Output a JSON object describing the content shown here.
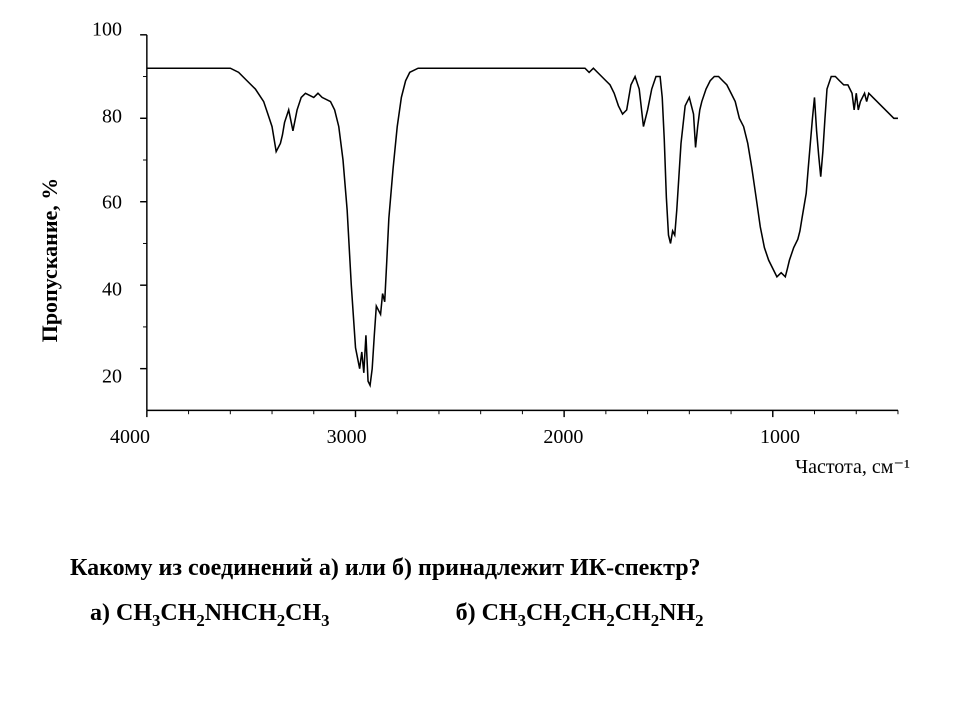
{
  "chart": {
    "type": "line",
    "line_color": "#000000",
    "line_width": 1.6,
    "background_color": "#ffffff",
    "axis_color": "#000000",
    "tick_fontsize": 20,
    "label_fontsize": 22,
    "xlim": [
      4000,
      400
    ],
    "ylim": [
      10,
      100
    ],
    "yticks": [
      20,
      40,
      60,
      80,
      100
    ],
    "xticks": [
      4000,
      3000,
      2000,
      1000
    ],
    "ylabel": "Пропускание, %",
    "xlabel": "Частота, см⁻¹",
    "series": [
      [
        4000,
        92
      ],
      [
        3900,
        92
      ],
      [
        3800,
        92
      ],
      [
        3700,
        92
      ],
      [
        3600,
        92
      ],
      [
        3560,
        91
      ],
      [
        3520,
        89
      ],
      [
        3480,
        87
      ],
      [
        3440,
        84
      ],
      [
        3420,
        81
      ],
      [
        3400,
        78
      ],
      [
        3380,
        72
      ],
      [
        3360,
        74
      ],
      [
        3350,
        76
      ],
      [
        3340,
        79
      ],
      [
        3320,
        82
      ],
      [
        3300,
        77
      ],
      [
        3280,
        82
      ],
      [
        3260,
        85
      ],
      [
        3240,
        86
      ],
      [
        3200,
        85
      ],
      [
        3180,
        86
      ],
      [
        3160,
        85
      ],
      [
        3120,
        84
      ],
      [
        3100,
        82
      ],
      [
        3080,
        78
      ],
      [
        3060,
        70
      ],
      [
        3040,
        58
      ],
      [
        3020,
        40
      ],
      [
        3000,
        25
      ],
      [
        2980,
        20
      ],
      [
        2970,
        24
      ],
      [
        2960,
        19
      ],
      [
        2950,
        28
      ],
      [
        2940,
        17
      ],
      [
        2930,
        16
      ],
      [
        2920,
        20
      ],
      [
        2910,
        28
      ],
      [
        2900,
        35
      ],
      [
        2880,
        33
      ],
      [
        2870,
        38
      ],
      [
        2860,
        36
      ],
      [
        2850,
        46
      ],
      [
        2840,
        56
      ],
      [
        2820,
        68
      ],
      [
        2800,
        78
      ],
      [
        2780,
        85
      ],
      [
        2760,
        89
      ],
      [
        2740,
        91
      ],
      [
        2700,
        92
      ],
      [
        2600,
        92
      ],
      [
        2500,
        92
      ],
      [
        2400,
        92
      ],
      [
        2300,
        92
      ],
      [
        2200,
        92
      ],
      [
        2100,
        92
      ],
      [
        2050,
        92
      ],
      [
        2000,
        92
      ],
      [
        1950,
        92
      ],
      [
        1900,
        92
      ],
      [
        1880,
        91
      ],
      [
        1860,
        92
      ],
      [
        1840,
        91
      ],
      [
        1820,
        90
      ],
      [
        1800,
        89
      ],
      [
        1780,
        88
      ],
      [
        1760,
        86
      ],
      [
        1740,
        83
      ],
      [
        1720,
        81
      ],
      [
        1700,
        82
      ],
      [
        1690,
        85
      ],
      [
        1680,
        88
      ],
      [
        1660,
        90
      ],
      [
        1640,
        87
      ],
      [
        1620,
        78
      ],
      [
        1600,
        82
      ],
      [
        1580,
        87
      ],
      [
        1560,
        90
      ],
      [
        1540,
        90
      ],
      [
        1530,
        85
      ],
      [
        1520,
        75
      ],
      [
        1510,
        61
      ],
      [
        1500,
        52
      ],
      [
        1490,
        50
      ],
      [
        1480,
        53
      ],
      [
        1470,
        52
      ],
      [
        1460,
        58
      ],
      [
        1450,
        66
      ],
      [
        1440,
        74
      ],
      [
        1420,
        83
      ],
      [
        1400,
        85
      ],
      [
        1380,
        81
      ],
      [
        1370,
        73
      ],
      [
        1360,
        78
      ],
      [
        1350,
        82
      ],
      [
        1340,
        84
      ],
      [
        1320,
        87
      ],
      [
        1300,
        89
      ],
      [
        1280,
        90
      ],
      [
        1260,
        90
      ],
      [
        1240,
        89
      ],
      [
        1220,
        88
      ],
      [
        1200,
        86
      ],
      [
        1180,
        84
      ],
      [
        1160,
        80
      ],
      [
        1140,
        78
      ],
      [
        1120,
        74
      ],
      [
        1100,
        68
      ],
      [
        1080,
        61
      ],
      [
        1060,
        54
      ],
      [
        1040,
        49
      ],
      [
        1020,
        46
      ],
      [
        1000,
        44
      ],
      [
        980,
        42
      ],
      [
        960,
        43
      ],
      [
        940,
        42
      ],
      [
        930,
        44
      ],
      [
        920,
        46
      ],
      [
        900,
        49
      ],
      [
        880,
        51
      ],
      [
        870,
        53
      ],
      [
        860,
        56
      ],
      [
        840,
        62
      ],
      [
        830,
        68
      ],
      [
        820,
        74
      ],
      [
        810,
        80
      ],
      [
        800,
        85
      ],
      [
        790,
        77
      ],
      [
        780,
        71
      ],
      [
        770,
        66
      ],
      [
        760,
        72
      ],
      [
        750,
        80
      ],
      [
        740,
        87
      ],
      [
        720,
        90
      ],
      [
        700,
        90
      ],
      [
        680,
        89
      ],
      [
        660,
        88
      ],
      [
        640,
        88
      ],
      [
        620,
        86
      ],
      [
        610,
        82
      ],
      [
        600,
        86
      ],
      [
        590,
        82
      ],
      [
        580,
        84
      ],
      [
        560,
        86
      ],
      [
        550,
        84
      ],
      [
        540,
        86
      ],
      [
        520,
        85
      ],
      [
        500,
        84
      ],
      [
        480,
        83
      ],
      [
        460,
        82
      ],
      [
        440,
        81
      ],
      [
        420,
        80
      ],
      [
        400,
        80
      ]
    ]
  },
  "text": {
    "question": "Какому из соединений а) или б) принадлежит ИК-спектр?",
    "opt_a_prefix": "а) ",
    "opt_a_formula_html": "CH<sub>3</sub>CH<sub>2</sub>NHCH<sub>2</sub>CH<sub>3</sub>",
    "opt_b_prefix": "б) ",
    "opt_b_formula_html": "CH<sub>3</sub>CH<sub>2</sub>CH<sub>2</sub>CH<sub>2</sub>NH<sub>2</sub>"
  }
}
